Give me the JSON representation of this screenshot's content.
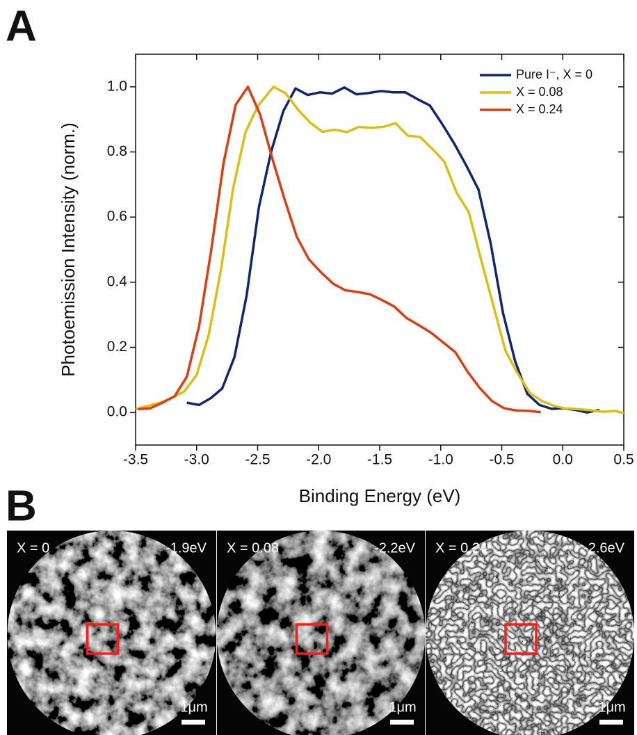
{
  "panel_labels": [
    "A",
    "B"
  ],
  "chart_data": {
    "type": "line",
    "xlabel": "Binding Energy (eV)",
    "ylabel": "Photoemission Intensity (norm.)",
    "xlim": [
      -3.5,
      0.5
    ],
    "ylim": [
      -0.1,
      1.1
    ],
    "xticks": [
      -3.5,
      {
        "value": -3,
        "label": "-3.0"
      },
      -2.5,
      {
        "value": -2,
        "label": "-2.0"
      },
      -1.5,
      {
        "value": -1,
        "label": "-1.0"
      },
      -0.5,
      {
        "value": 0,
        "label": "0.0"
      },
      0.5
    ],
    "yticks": [
      {
        "value": 0,
        "label": "0.0"
      },
      0.2,
      0.4,
      0.6,
      0.8,
      {
        "value": 1,
        "label": "1.0"
      }
    ],
    "legend": "upper right",
    "series": [
      {
        "name": "Pure I⁻, X = 0",
        "color": "#0f2673",
        "x": [
          -3.08,
          -2.98,
          -2.88,
          -2.79,
          -2.69,
          -2.59,
          -2.49,
          -2.39,
          -2.29,
          -2.19,
          -2.09,
          -1.99,
          -1.89,
          -1.79,
          -1.69,
          -1.59,
          -1.49,
          -1.39,
          -1.29,
          -1.19,
          -1.09,
          -0.99,
          -0.89,
          -0.79,
          -0.69,
          -0.59,
          -0.49,
          -0.39,
          -0.29,
          -0.19,
          -0.09,
          0.0,
          0.1,
          0.2,
          0.3
        ],
        "values": [
          0.03,
          0.023,
          0.045,
          0.074,
          0.17,
          0.36,
          0.63,
          0.8,
          0.925,
          0.995,
          0.975,
          0.983,
          0.979,
          0.998,
          0.977,
          0.981,
          0.987,
          0.983,
          0.983,
          0.962,
          0.943,
          0.887,
          0.826,
          0.758,
          0.684,
          0.518,
          0.306,
          0.157,
          0.057,
          0.023,
          0.011,
          0.013,
          0.008,
          0.0,
          0.008
        ]
      },
      {
        "name": "X = 0.08",
        "color": "#dfbd12",
        "x": [
          -3.5,
          -3.4,
          -3.3,
          -3.2,
          -3.1,
          -3.0,
          -2.9,
          -2.8,
          -2.7,
          -2.6,
          -2.5,
          -2.37,
          -2.27,
          -2.17,
          -2.07,
          -1.97,
          -1.87,
          -1.77,
          -1.67,
          -1.57,
          -1.47,
          -1.37,
          -1.27,
          -1.17,
          -1.07,
          -0.97,
          -0.87,
          -0.77,
          -0.67,
          -0.57,
          -0.47,
          -0.37,
          -0.27,
          -0.17,
          -0.07,
          0.03,
          0.13,
          0.23,
          0.33,
          0.43,
          0.5
        ],
        "values": [
          0.01,
          0.02,
          0.03,
          0.045,
          0.065,
          0.115,
          0.24,
          0.44,
          0.69,
          0.86,
          0.94,
          1.0,
          0.98,
          0.93,
          0.89,
          0.862,
          0.868,
          0.861,
          0.877,
          0.874,
          0.877,
          0.888,
          0.85,
          0.846,
          0.81,
          0.77,
          0.675,
          0.615,
          0.47,
          0.33,
          0.19,
          0.12,
          0.06,
          0.035,
          0.02,
          0.012,
          0.01,
          0.007,
          0.002,
          0.005,
          -0.002
        ]
      },
      {
        "name": "X = 0.24",
        "color": "#e03c12",
        "x": [
          -3.48,
          -3.38,
          -3.28,
          -3.18,
          -3.08,
          -2.98,
          -2.88,
          -2.78,
          -2.68,
          -2.58,
          -2.48,
          -2.38,
          -2.28,
          -2.18,
          -2.08,
          -1.98,
          -1.88,
          -1.78,
          -1.68,
          -1.58,
          -1.48,
          -1.38,
          -1.28,
          -1.18,
          -1.08,
          -0.98,
          -0.88,
          -0.78,
          -0.68,
          -0.58,
          -0.48,
          -0.38,
          -0.28,
          -0.18
        ],
        "values": [
          0.01,
          0.013,
          0.03,
          0.05,
          0.11,
          0.265,
          0.5,
          0.765,
          0.945,
          1.0,
          0.915,
          0.78,
          0.655,
          0.54,
          0.47,
          0.43,
          0.395,
          0.375,
          0.37,
          0.363,
          0.345,
          0.325,
          0.29,
          0.268,
          0.245,
          0.215,
          0.185,
          0.125,
          0.075,
          0.035,
          0.013,
          0.006,
          0.005,
          0.001
        ]
      }
    ]
  },
  "images": [
    {
      "label": "X = 0",
      "energy": "-1.9eV",
      "scale": "1μm"
    },
    {
      "label": "X = 0.08",
      "energy": "-2.2eV",
      "scale": "1μm"
    },
    {
      "label": "X = 0.24",
      "energy": "-2.6eV",
      "scale": "1μm"
    }
  ]
}
